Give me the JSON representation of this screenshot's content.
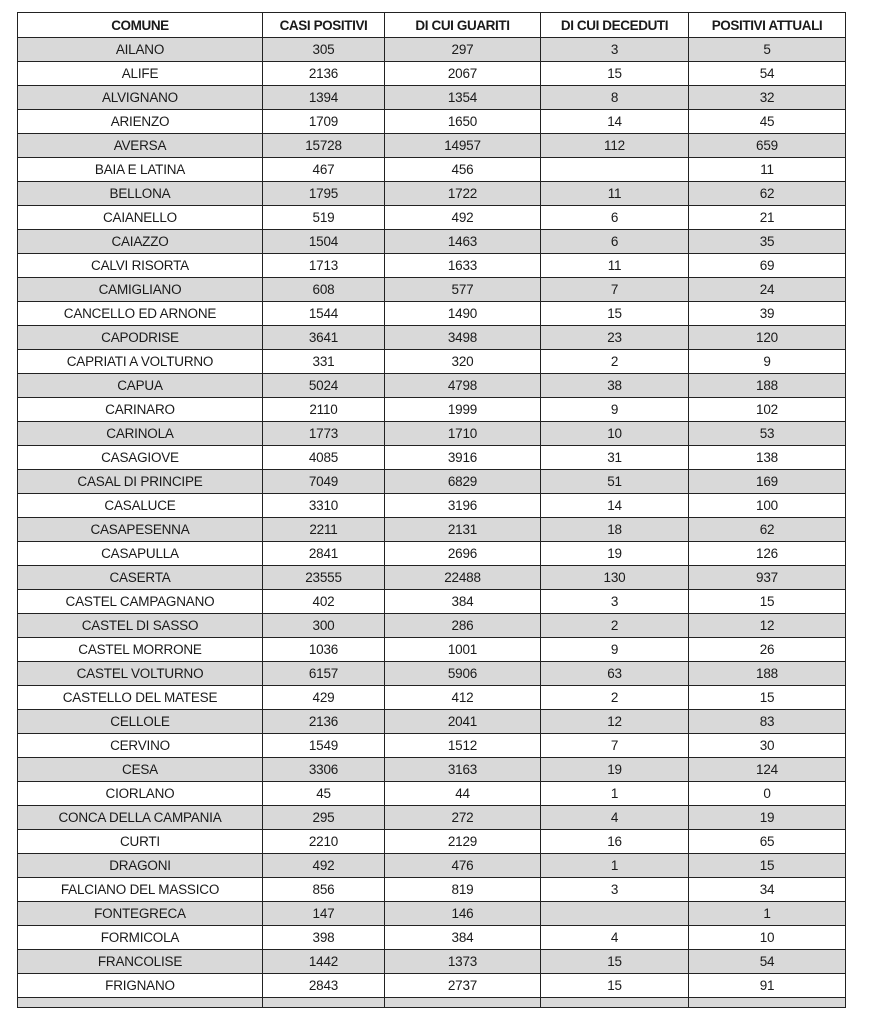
{
  "table": {
    "headers": [
      "COMUNE",
      "CASI POSITIVI",
      "DI CUI GUARITI",
      "DI CUI DECEDUTI",
      "POSITIVI ATTUALI"
    ],
    "rows": [
      [
        "AILANO",
        "305",
        "297",
        "3",
        "5"
      ],
      [
        "ALIFE",
        "2136",
        "2067",
        "15",
        "54"
      ],
      [
        "ALVIGNANO",
        "1394",
        "1354",
        "8",
        "32"
      ],
      [
        "ARIENZO",
        "1709",
        "1650",
        "14",
        "45"
      ],
      [
        "AVERSA",
        "15728",
        "14957",
        "112",
        "659"
      ],
      [
        "BAIA E LATINA",
        "467",
        "456",
        "",
        "11"
      ],
      [
        "BELLONA",
        "1795",
        "1722",
        "11",
        "62"
      ],
      [
        "CAIANELLO",
        "519",
        "492",
        "6",
        "21"
      ],
      [
        "CAIAZZO",
        "1504",
        "1463",
        "6",
        "35"
      ],
      [
        "CALVI RISORTA",
        "1713",
        "1633",
        "11",
        "69"
      ],
      [
        "CAMIGLIANO",
        "608",
        "577",
        "7",
        "24"
      ],
      [
        "CANCELLO ED ARNONE",
        "1544",
        "1490",
        "15",
        "39"
      ],
      [
        "CAPODRISE",
        "3641",
        "3498",
        "23",
        "120"
      ],
      [
        "CAPRIATI A VOLTURNO",
        "331",
        "320",
        "2",
        "9"
      ],
      [
        "CAPUA",
        "5024",
        "4798",
        "38",
        "188"
      ],
      [
        "CARINARO",
        "2110",
        "1999",
        "9",
        "102"
      ],
      [
        "CARINOLA",
        "1773",
        "1710",
        "10",
        "53"
      ],
      [
        "CASAGIOVE",
        "4085",
        "3916",
        "31",
        "138"
      ],
      [
        "CASAL DI PRINCIPE",
        "7049",
        "6829",
        "51",
        "169"
      ],
      [
        "CASALUCE",
        "3310",
        "3196",
        "14",
        "100"
      ],
      [
        "CASAPESENNA",
        "2211",
        "2131",
        "18",
        "62"
      ],
      [
        "CASAPULLA",
        "2841",
        "2696",
        "19",
        "126"
      ],
      [
        "CASERTA",
        "23555",
        "22488",
        "130",
        "937"
      ],
      [
        "CASTEL CAMPAGNANO",
        "402",
        "384",
        "3",
        "15"
      ],
      [
        "CASTEL DI SASSO",
        "300",
        "286",
        "2",
        "12"
      ],
      [
        "CASTEL MORRONE",
        "1036",
        "1001",
        "9",
        "26"
      ],
      [
        "CASTEL VOLTURNO",
        "6157",
        "5906",
        "63",
        "188"
      ],
      [
        "CASTELLO DEL MATESE",
        "429",
        "412",
        "2",
        "15"
      ],
      [
        "CELLOLE",
        "2136",
        "2041",
        "12",
        "83"
      ],
      [
        "CERVINO",
        "1549",
        "1512",
        "7",
        "30"
      ],
      [
        "CESA",
        "3306",
        "3163",
        "19",
        "124"
      ],
      [
        "CIORLANO",
        "45",
        "44",
        "1",
        "0"
      ],
      [
        "CONCA DELLA CAMPANIA",
        "295",
        "272",
        "4",
        "19"
      ],
      [
        "CURTI",
        "2210",
        "2129",
        "16",
        "65"
      ],
      [
        "DRAGONI",
        "492",
        "476",
        "1",
        "15"
      ],
      [
        "FALCIANO DEL MASSICO",
        "856",
        "819",
        "3",
        "34"
      ],
      [
        "FONTEGRECA",
        "147",
        "146",
        "",
        "1"
      ],
      [
        "FORMICOLA",
        "398",
        "384",
        "4",
        "10"
      ],
      [
        "FRANCOLISE",
        "1442",
        "1373",
        "15",
        "54"
      ],
      [
        "FRIGNANO",
        "2843",
        "2737",
        "15",
        "91"
      ]
    ]
  }
}
